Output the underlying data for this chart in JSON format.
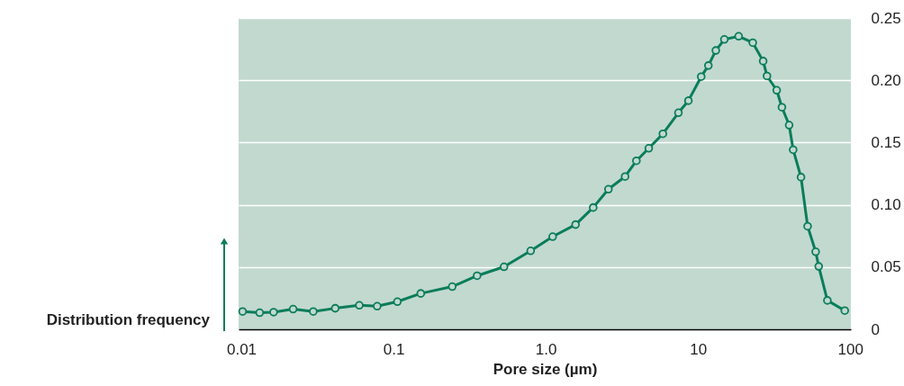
{
  "chart_data": {
    "type": "line",
    "xlabel": "Pore size (µm)",
    "ylabel": "Distribution frequency",
    "x": [
      0.0102,
      0.0132,
      0.0163,
      0.0219,
      0.0297,
      0.0414,
      0.0596,
      0.0781,
      0.106,
      0.151,
      0.243,
      0.354,
      0.532,
      0.796,
      1.11,
      1.57,
      2.05,
      2.58,
      3.32,
      3.94,
      4.75,
      5.88,
      7.44,
      8.65,
      10.5,
      11.7,
      13.1,
      14.9,
      18.5,
      22.9,
      26.8,
      28.4,
      32.9,
      35.6,
      39.7,
      42.2,
      47.5,
      52.5,
      59.3,
      62.1,
      70.8,
      92.1
    ],
    "series": [
      {
        "color": "#0a7d5a",
        "values": [
          0.0143,
          0.0133,
          0.0138,
          0.0162,
          0.0143,
          0.0169,
          0.0193,
          0.0186,
          0.0222,
          0.0288,
          0.0343,
          0.043,
          0.0502,
          0.063,
          0.0744,
          0.0841,
          0.0978,
          0.1125,
          0.1227,
          0.1353,
          0.1454,
          0.157,
          0.1739,
          0.1836,
          0.2029,
          0.2118,
          0.2239,
          0.2328,
          0.2353,
          0.2302,
          0.2154,
          0.2034,
          0.192,
          0.1783,
          0.164,
          0.1442,
          0.1222,
          0.0828,
          0.0623,
          0.0505,
          0.0232,
          0.015
        ]
      }
    ],
    "log": "x",
    "xlim": [
      0.0096,
      101
    ],
    "xticks": [
      0.01,
      0.1,
      {
        "value": 1,
        "label": "1.0"
      },
      10,
      100
    ],
    "ylim": [
      0,
      0.25
    ],
    "yticks": [
      0,
      0.05,
      {
        "value": 0.1,
        "label": "0.10"
      },
      0.15,
      {
        "value": 0.2,
        "label": "0.20"
      },
      0.25
    ],
    "grid": "y",
    "marker": "circle",
    "line_style": "solid"
  }
}
